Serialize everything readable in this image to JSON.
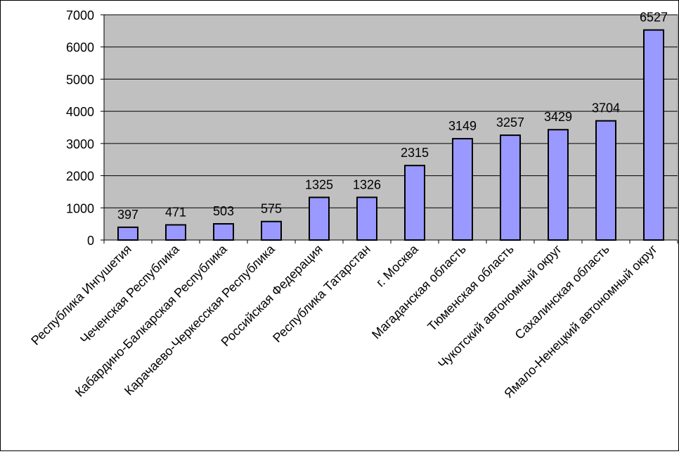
{
  "chart_data": {
    "type": "bar",
    "categories": [
      "Республика Ингушетия",
      "Чеченская Республика",
      "Кабардино-Балкарская Республика",
      "Карачаево-Черкесская Республика",
      "Российская Федерация",
      "Республика Татарстан",
      "г. Москва",
      "Магаданская область",
      "Тюменская область",
      "Чукотский автономный округ",
      "Сахалинская область",
      "Ямало-Ненецкий автономный округ"
    ],
    "values": [
      397,
      471,
      503,
      575,
      1325,
      1326,
      2315,
      3149,
      3257,
      3429,
      3704,
      6527
    ],
    "data_labels": [
      "397",
      "471",
      "503",
      "575",
      "1325",
      "1326",
      "2315",
      "3149",
      "3257",
      "3429",
      "3704",
      "6527"
    ],
    "title": "",
    "xlabel": "",
    "ylabel": "",
    "ylim": [
      0,
      7000
    ],
    "yticks": [
      "0",
      "1000",
      "2000",
      "3000",
      "4000",
      "5000",
      "6000",
      "7000"
    ],
    "grid": true,
    "legend": "none",
    "colors": {
      "plot_background": "#c0c0c0",
      "bar_fill": "#9999ff",
      "bar_stroke": "#000000",
      "gridline": "#000000"
    }
  }
}
